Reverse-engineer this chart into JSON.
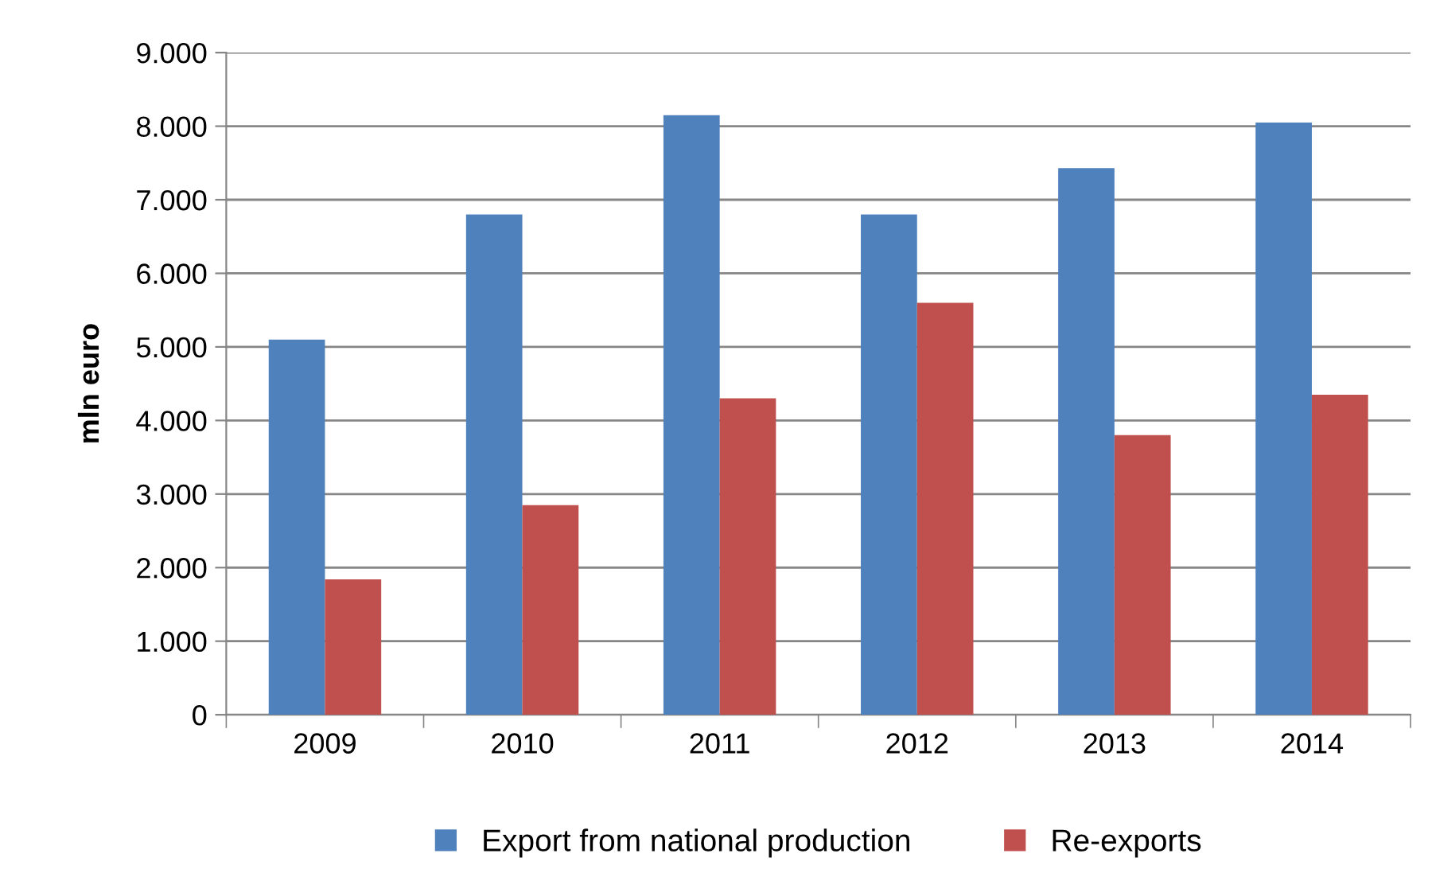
{
  "chart_data": {
    "type": "bar",
    "ylabel": "mln euro",
    "categories": [
      "2009",
      "2010",
      "2011",
      "2012",
      "2013",
      "2014"
    ],
    "series": [
      {
        "name": "Export from national production",
        "color": "#4f81bd",
        "values": [
          5100,
          6800,
          8150,
          6800,
          7430,
          8050
        ]
      },
      {
        "name": "Re-exports",
        "color": "#c0504d",
        "values": [
          1840,
          2850,
          4300,
          5600,
          3800,
          4350
        ]
      }
    ],
    "ylim": [
      0,
      9000
    ],
    "yticks": [
      {
        "value": 0,
        "label": "0"
      },
      {
        "value": 1000,
        "label": "1.000"
      },
      {
        "value": 2000,
        "label": "2.000"
      },
      {
        "value": 3000,
        "label": "3.000"
      },
      {
        "value": 4000,
        "label": "4.000"
      },
      {
        "value": 5000,
        "label": "5.000"
      },
      {
        "value": 6000,
        "label": "6.000"
      },
      {
        "value": 7000,
        "label": "7.000"
      },
      {
        "value": 8000,
        "label": "8.000"
      },
      {
        "value": 9000,
        "label": "9.000"
      }
    ],
    "grid": "y",
    "legend": "bottom"
  }
}
